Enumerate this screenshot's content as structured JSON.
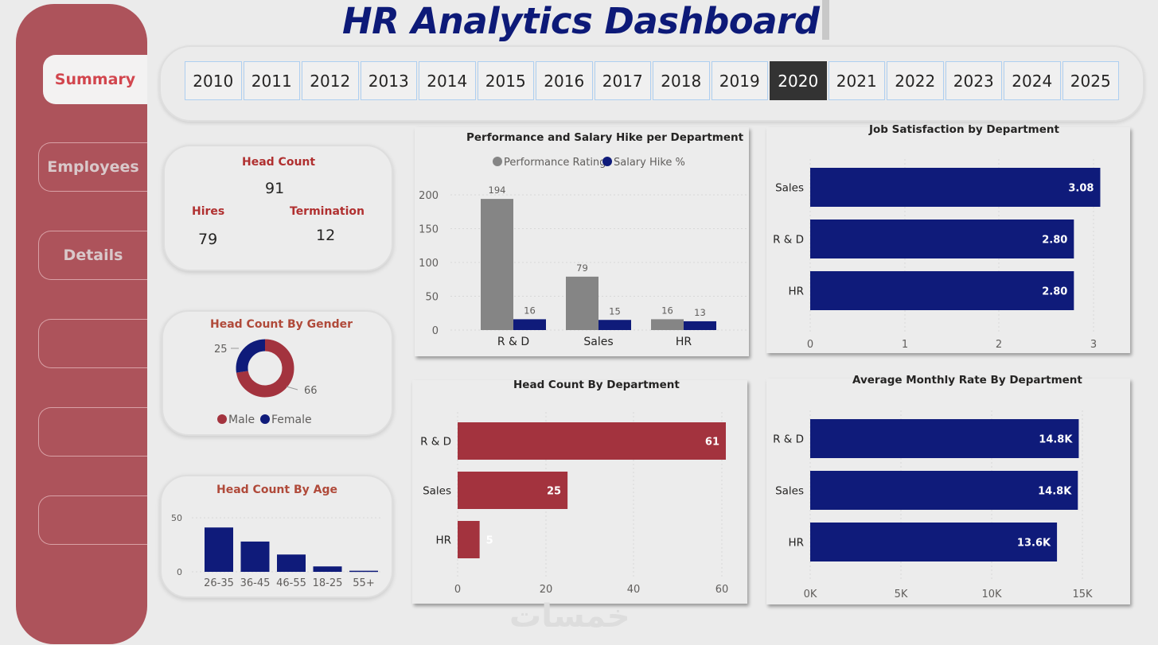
{
  "title": "HR Analytics Dashboard",
  "nav": [
    {
      "label": "Summary",
      "active": true
    },
    {
      "label": "Employees",
      "active": false
    },
    {
      "label": "Details",
      "active": false
    },
    {
      "label": "",
      "active": false
    },
    {
      "label": "",
      "active": false
    },
    {
      "label": "",
      "active": false
    }
  ],
  "years": [
    "2010",
    "2011",
    "2012",
    "2013",
    "2014",
    "2015",
    "2016",
    "2017",
    "2018",
    "2019",
    "2020",
    "2021",
    "2022",
    "2023",
    "2024",
    "2025"
  ],
  "selected_year": "2020",
  "kpi": {
    "head_count_label": "Head Count",
    "head_count": "91",
    "hires_label": "Hires",
    "hires": "79",
    "termination_label": "Termination",
    "termination": "12"
  },
  "watermark": "خمسات",
  "colors": {
    "sidebar": "#ad535b",
    "navy": "#0f1b7a",
    "red": "#a3333e",
    "gray": "#858585"
  },
  "chart_data": [
    {
      "id": "gender",
      "type": "pie",
      "title": "Head Count By Gender",
      "categories": [
        "Male",
        "Female"
      ],
      "values": [
        66,
        25
      ],
      "legend": [
        "Male",
        "Female"
      ],
      "colors": [
        "#a3333e",
        "#0f1b7a"
      ]
    },
    {
      "id": "age",
      "type": "bar",
      "title": "Head Count By Age",
      "categories": [
        "26-35",
        "36-45",
        "46-55",
        "18-25",
        "55+"
      ],
      "values": [
        41,
        28,
        16,
        5,
        1
      ],
      "yticks": [
        0,
        50
      ],
      "ylim": [
        0,
        50
      ]
    },
    {
      "id": "perf",
      "type": "bar",
      "title": "Performance and Salary Hike per Department",
      "categories": [
        "R & D",
        "Sales",
        "HR"
      ],
      "series": [
        {
          "name": "Performance Rating",
          "values": [
            194,
            79,
            16
          ],
          "color": "#858585"
        },
        {
          "name": "Salary Hike %",
          "values": [
            16,
            15,
            13
          ],
          "color": "#0f1b7a"
        }
      ],
      "yticks": [
        0,
        50,
        100,
        150,
        200
      ],
      "ylim": [
        0,
        200
      ]
    },
    {
      "id": "jobsat",
      "type": "bar",
      "orientation": "horizontal",
      "title": "Job Satisfaction by Department",
      "categories": [
        "Sales",
        "R & D",
        "HR"
      ],
      "values": [
        3.08,
        2.8,
        2.8
      ],
      "labels": [
        "3.08",
        "2.80",
        "2.80"
      ],
      "xticks": [
        "0",
        "1",
        "2",
        "3"
      ],
      "xlim": [
        0,
        3.1
      ]
    },
    {
      "id": "hcdept",
      "type": "bar",
      "orientation": "horizontal",
      "title": "Head Count By Department",
      "categories": [
        "R & D",
        "Sales",
        "HR"
      ],
      "values": [
        61,
        25,
        5
      ],
      "labels": [
        "61",
        "25",
        "5"
      ],
      "xticks": [
        "0",
        "20",
        "40",
        "60"
      ],
      "xlim": [
        0,
        61
      ]
    },
    {
      "id": "rate",
      "type": "bar",
      "orientation": "horizontal",
      "title": "Average Monthly Rate By Department",
      "categories": [
        "R & D",
        "Sales",
        "HR"
      ],
      "values": [
        14800,
        14750,
        13600
      ],
      "labels": [
        "14.8K",
        "14.8K",
        "13.6K"
      ],
      "xticks": [
        "0K",
        "5K",
        "10K",
        "15K"
      ],
      "xlim": [
        0,
        15000
      ]
    }
  ]
}
